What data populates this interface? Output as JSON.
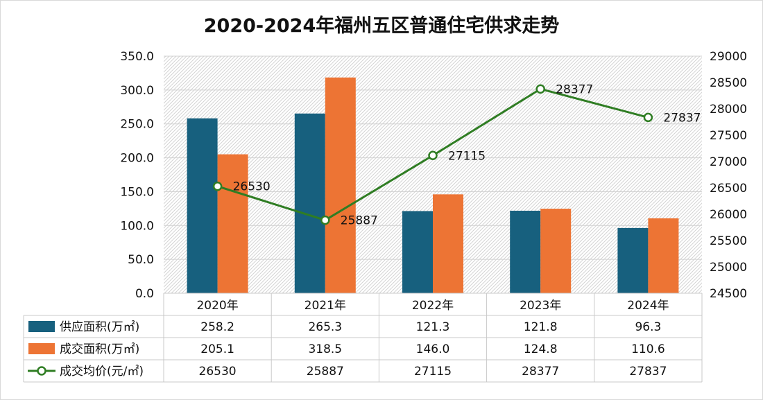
{
  "chart_data": {
    "type": "bar+line",
    "title": "2020-2024年福州五区普通住宅供求走势",
    "categories": [
      "2020年",
      "2021年",
      "2022年",
      "2023年",
      "2024年"
    ],
    "series": [
      {
        "name": "供应面积(万㎡)",
        "kind": "bar",
        "axis": "left",
        "color": "#17607e",
        "values": [
          258.2,
          265.3,
          121.3,
          121.8,
          96.3
        ],
        "display": [
          "258.2",
          "265.3",
          "121.3",
          "121.8",
          "96.3"
        ]
      },
      {
        "name": "成交面积(万㎡)",
        "kind": "bar",
        "axis": "left",
        "color": "#ed7434",
        "values": [
          205.1,
          318.5,
          146.0,
          124.8,
          110.6
        ],
        "display": [
          "205.1",
          "318.5",
          "146.0",
          "124.8",
          "110.6"
        ]
      },
      {
        "name": "成交均价(元/㎡)",
        "kind": "line",
        "axis": "right",
        "color": "#2f7d23",
        "values": [
          26530,
          25887,
          27115,
          28377,
          27837
        ],
        "display": [
          "26530",
          "25887",
          "27115",
          "28377",
          "27837"
        ]
      }
    ],
    "left_axis": {
      "min": 0,
      "max": 350,
      "step": 50,
      "labels": [
        "0.0",
        "50.0",
        "100.0",
        "150.0",
        "200.0",
        "250.0",
        "300.0",
        "350.0"
      ]
    },
    "right_axis": {
      "min": 24500,
      "max": 29000,
      "step": 500,
      "labels": [
        "24500",
        "25000",
        "25500",
        "26000",
        "26500",
        "27000",
        "27500",
        "28000",
        "28500",
        "29000"
      ]
    },
    "grid": true,
    "legend": "data-table"
  }
}
